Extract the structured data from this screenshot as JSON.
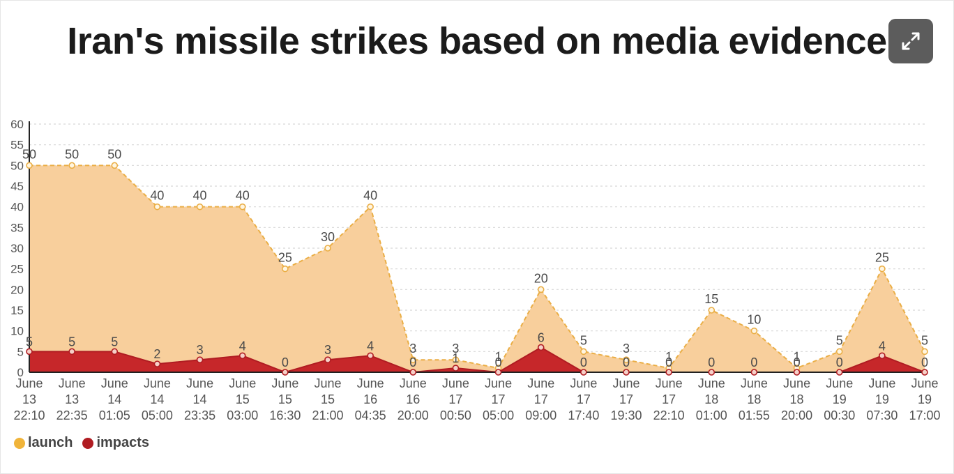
{
  "title": "Iran's missile strikes based on media evidence",
  "expand_icon": "expand-arrows-icon",
  "colors": {
    "launch_fill": "#f8cf9c",
    "launch_line": "#eaae45",
    "impacts_fill": "#c6272a",
    "impacts_line": "#b01c22",
    "grid": "#d8d8d8",
    "text": "#555555"
  },
  "legend": [
    {
      "label": "launch",
      "color": "#f0b43a"
    },
    {
      "label": "impacts",
      "color": "#b01c22"
    }
  ],
  "chart_data": {
    "type": "area",
    "title": "Iran's missile strikes based on media evidence",
    "categories": [
      [
        "June",
        "13",
        "22:10"
      ],
      [
        "June",
        "13",
        "22:35"
      ],
      [
        "June",
        "14",
        "01:05"
      ],
      [
        "June",
        "14",
        "05:00"
      ],
      [
        "June",
        "14",
        "23:35"
      ],
      [
        "June",
        "15",
        "03:00"
      ],
      [
        "June",
        "15",
        "16:30"
      ],
      [
        "June",
        "15",
        "21:00"
      ],
      [
        "June",
        "16",
        "04:35"
      ],
      [
        "June",
        "16",
        "20:00"
      ],
      [
        "June",
        "17",
        "00:50"
      ],
      [
        "June",
        "17",
        "05:00"
      ],
      [
        "June",
        "17",
        "09:00"
      ],
      [
        "June",
        "17",
        "17:40"
      ],
      [
        "June",
        "17",
        "19:30"
      ],
      [
        "June",
        "17",
        "22:10"
      ],
      [
        "June",
        "18",
        "01:00"
      ],
      [
        "June",
        "18",
        "01:55"
      ],
      [
        "June",
        "18",
        "20:00"
      ],
      [
        "June",
        "19",
        "00:30"
      ],
      [
        "June",
        "19",
        "07:30"
      ],
      [
        "June",
        "19",
        "17:00"
      ]
    ],
    "series": [
      {
        "name": "launch",
        "values": [
          50,
          50,
          50,
          40,
          40,
          40,
          25,
          30,
          40,
          3,
          3,
          1,
          20,
          5,
          3,
          1,
          15,
          10,
          1,
          5,
          25,
          5
        ]
      },
      {
        "name": "impacts",
        "values": [
          5,
          5,
          5,
          2,
          3,
          4,
          0,
          3,
          4,
          0,
          1,
          0,
          6,
          0,
          0,
          0,
          0,
          0,
          0,
          0,
          4,
          0
        ]
      }
    ],
    "yticks": [
      0,
      5,
      10,
      15,
      20,
      25,
      30,
      35,
      40,
      45,
      50,
      55,
      60
    ],
    "ylim": [
      0,
      60
    ],
    "grid": true,
    "legend_position": "bottom-left"
  }
}
